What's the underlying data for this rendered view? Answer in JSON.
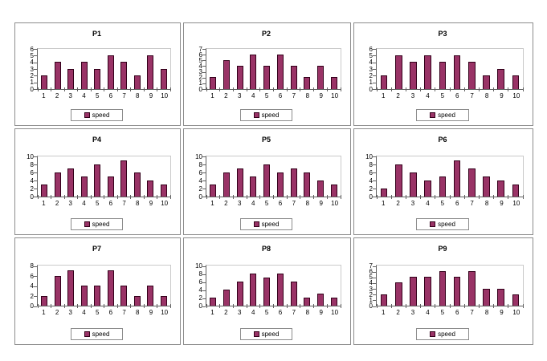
{
  "page": {
    "background": "#ffffff"
  },
  "colors": {
    "bar_fill": "#993366",
    "bar_border": "#33001a",
    "plot_border_light": "#c9c9c9",
    "axis": "#5f5f5f",
    "panel_border": "#8c8c8c",
    "text": "#000000"
  },
  "chart_data": [
    {
      "type": "bar",
      "title": "P1",
      "categories": [
        "1",
        "2",
        "3",
        "4",
        "5",
        "6",
        "7",
        "8",
        "9",
        "10"
      ],
      "series": [
        {
          "name": "speed",
          "values": [
            2,
            4,
            3,
            4,
            3,
            5,
            4,
            2,
            5,
            3
          ]
        }
      ],
      "xlabel": "",
      "ylabel": "",
      "ylim": [
        0,
        6
      ],
      "ytick_step": 1,
      "grid": false,
      "legend_position": "bottom"
    },
    {
      "type": "bar",
      "title": "P2",
      "categories": [
        "1",
        "2",
        "3",
        "4",
        "5",
        "6",
        "7",
        "8",
        "9",
        "10"
      ],
      "series": [
        {
          "name": "speed",
          "values": [
            2,
            5,
            4,
            6,
            4,
            6,
            4,
            2,
            4,
            2
          ]
        }
      ],
      "xlabel": "",
      "ylabel": "",
      "ylim": [
        0,
        7
      ],
      "ytick_step": 1,
      "grid": false,
      "legend_position": "bottom"
    },
    {
      "type": "bar",
      "title": "P3",
      "categories": [
        "1",
        "2",
        "3",
        "4",
        "5",
        "6",
        "7",
        "8",
        "9",
        "10"
      ],
      "series": [
        {
          "name": "speed",
          "values": [
            2,
            5,
            4,
            5,
            4,
            5,
            4,
            2,
            3,
            2
          ]
        }
      ],
      "xlabel": "",
      "ylabel": "",
      "ylim": [
        0,
        6
      ],
      "ytick_step": 1,
      "grid": false,
      "legend_position": "bottom"
    },
    {
      "type": "bar",
      "title": "P4",
      "categories": [
        "1",
        "2",
        "3",
        "4",
        "5",
        "6",
        "7",
        "8",
        "9",
        "10"
      ],
      "series": [
        {
          "name": "speed",
          "values": [
            3,
            6,
            7,
            5,
            8,
            5,
            9,
            6,
            4,
            3
          ]
        }
      ],
      "xlabel": "",
      "ylabel": "",
      "ylim": [
        0,
        10
      ],
      "ytick_step": 2,
      "grid": false,
      "legend_position": "bottom"
    },
    {
      "type": "bar",
      "title": "P5",
      "categories": [
        "1",
        "2",
        "3",
        "4",
        "5",
        "6",
        "7",
        "8",
        "9",
        "10"
      ],
      "series": [
        {
          "name": "speed",
          "values": [
            3,
            6,
            7,
            5,
            8,
            6,
            7,
            6,
            4,
            3
          ]
        }
      ],
      "xlabel": "",
      "ylabel": "",
      "ylim": [
        0,
        10
      ],
      "ytick_step": 2,
      "grid": false,
      "legend_position": "bottom"
    },
    {
      "type": "bar",
      "title": "P6",
      "categories": [
        "1",
        "2",
        "3",
        "4",
        "5",
        "6",
        "7",
        "8",
        "9",
        "10"
      ],
      "series": [
        {
          "name": "speed",
          "values": [
            2,
            8,
            6,
            4,
            5,
            9,
            7,
            5,
            4,
            3
          ]
        }
      ],
      "xlabel": "",
      "ylabel": "",
      "ylim": [
        0,
        10
      ],
      "ytick_step": 2,
      "grid": false,
      "legend_position": "bottom"
    },
    {
      "type": "bar",
      "title": "P7",
      "categories": [
        "1",
        "2",
        "3",
        "4",
        "5",
        "6",
        "7",
        "8",
        "9",
        "10"
      ],
      "series": [
        {
          "name": "speed",
          "values": [
            2,
            6,
            7,
            4,
            4,
            7,
            4,
            2,
            4,
            2
          ]
        }
      ],
      "xlabel": "",
      "ylabel": "",
      "ylim": [
        0,
        8
      ],
      "ytick_step": 2,
      "grid": false,
      "legend_position": "bottom"
    },
    {
      "type": "bar",
      "title": "P8",
      "categories": [
        "1",
        "2",
        "3",
        "4",
        "5",
        "6",
        "7",
        "8",
        "9",
        "10"
      ],
      "series": [
        {
          "name": "speed",
          "values": [
            2,
            4,
            6,
            8,
            7,
            8,
            6,
            2,
            3,
            2
          ]
        }
      ],
      "xlabel": "",
      "ylabel": "",
      "ylim": [
        0,
        10
      ],
      "ytick_step": 2,
      "grid": false,
      "legend_position": "bottom"
    },
    {
      "type": "bar",
      "title": "P9",
      "categories": [
        "1",
        "2",
        "3",
        "4",
        "5",
        "6",
        "7",
        "8",
        "9",
        "10"
      ],
      "series": [
        {
          "name": "speed",
          "values": [
            2,
            4,
            5,
            5,
            6,
            5,
            6,
            3,
            3,
            2
          ]
        }
      ],
      "xlabel": "",
      "ylabel": "",
      "ylim": [
        0,
        7
      ],
      "ytick_step": 1,
      "grid": false,
      "legend_position": "bottom"
    }
  ]
}
